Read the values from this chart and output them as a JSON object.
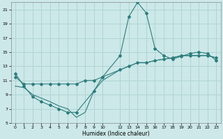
{
  "xlabel": "Humidex (Indice chaleur)",
  "ylabel": "",
  "bg_color": "#cce8e8",
  "grid_color": "#b0d4d4",
  "line_color": "#2d7d7d",
  "xlim": [
    -0.5,
    23.5
  ],
  "ylim": [
    5,
    22
  ],
  "yticks": [
    5,
    7,
    9,
    11,
    13,
    15,
    17,
    19,
    21
  ],
  "xticks": [
    0,
    1,
    2,
    3,
    4,
    5,
    6,
    7,
    8,
    9,
    10,
    12,
    13,
    14,
    15,
    16,
    17,
    18,
    19,
    20,
    21,
    22,
    23
  ],
  "line1_x": [
    0,
    1,
    2,
    3,
    4,
    5,
    6,
    7,
    9,
    10,
    12,
    13,
    14,
    15,
    16,
    17,
    18,
    19,
    20,
    21,
    22,
    23
  ],
  "line1_y": [
    12.0,
    10.2,
    8.7,
    8.0,
    7.5,
    7.0,
    6.5,
    6.5,
    9.5,
    11.5,
    14.5,
    20.0,
    22.0,
    20.5,
    15.5,
    14.5,
    14.0,
    14.4,
    14.8,
    15.0,
    14.8,
    13.8
  ],
  "line2_x": [
    0,
    1,
    2,
    3,
    4,
    5,
    6,
    7,
    8,
    9,
    10,
    12,
    13,
    14,
    15,
    16,
    17,
    18,
    19,
    20,
    21,
    22,
    23
  ],
  "line2_y": [
    11.5,
    10.5,
    10.5,
    10.5,
    10.5,
    10.5,
    10.5,
    10.5,
    11.0,
    11.0,
    11.5,
    12.5,
    13.0,
    13.5,
    13.5,
    13.8,
    14.0,
    14.2,
    14.5,
    14.5,
    14.5,
    14.5,
    14.2
  ],
  "line3_x": [
    0,
    1,
    2,
    3,
    4,
    5,
    6,
    7,
    8,
    9,
    10,
    12,
    13,
    14,
    15,
    16,
    17,
    18,
    19,
    20,
    21,
    22,
    23
  ],
  "line3_y": [
    10.2,
    10.0,
    9.0,
    8.5,
    8.0,
    7.4,
    7.0,
    5.8,
    6.5,
    9.5,
    11.0,
    12.5,
    13.0,
    13.5,
    13.5,
    13.8,
    14.0,
    14.2,
    14.5,
    14.5,
    14.5,
    14.5,
    14.2
  ]
}
